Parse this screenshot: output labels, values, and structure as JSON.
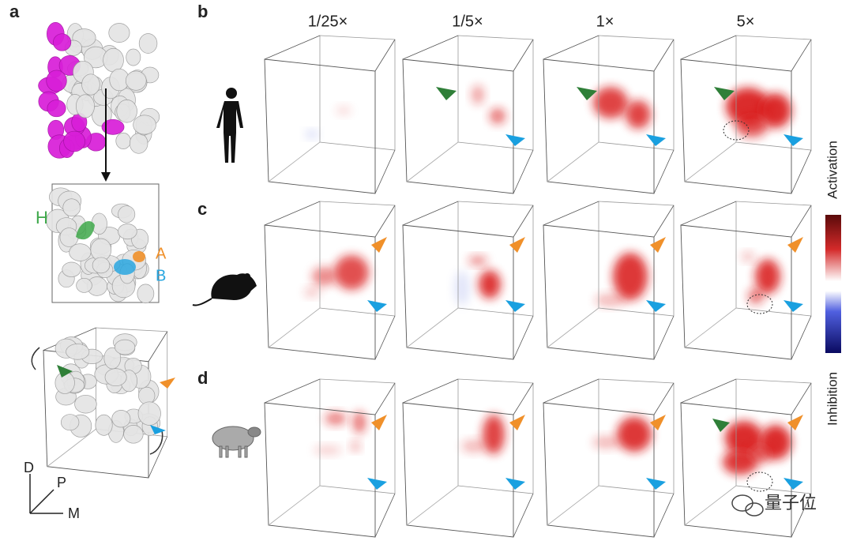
{
  "panels": {
    "a": "a",
    "b": "b",
    "c": "c",
    "d": "d"
  },
  "columns": [
    "1/25×",
    "1/5×",
    "1×",
    "5×"
  ],
  "regions": {
    "h": "H",
    "a": "A",
    "b": "B"
  },
  "axes": {
    "d": "D",
    "p": "P",
    "m": "M"
  },
  "colorbar": {
    "top": "Activation",
    "bottom": "Inhibition"
  },
  "watermark": "量子位"
}
